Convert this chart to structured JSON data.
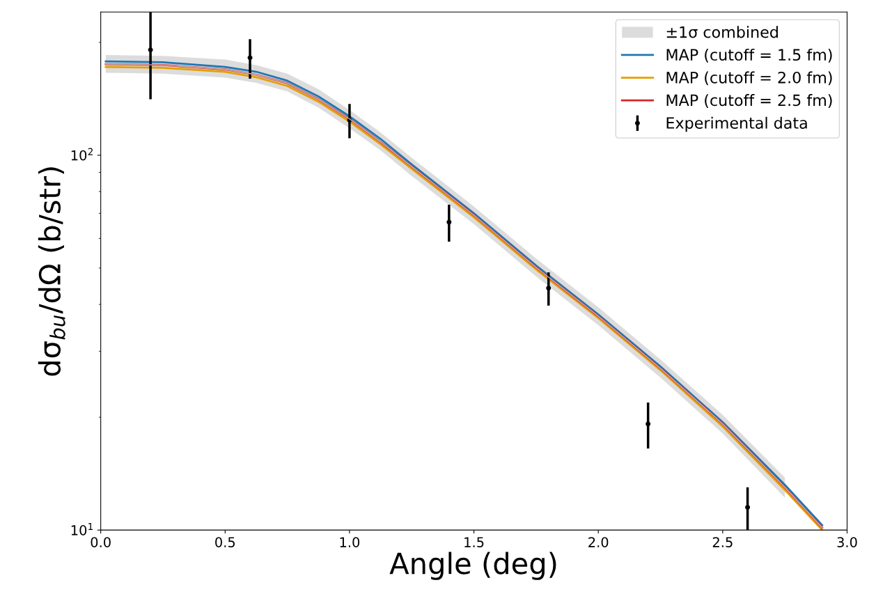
{
  "chart_data": {
    "type": "line",
    "xlabel": "Angle (deg)",
    "ylabel": "dσ$_{bu}$/dΩ (b/str)",
    "log": "y",
    "xlim": [
      0,
      3
    ],
    "ylim": [
      10,
      241
    ],
    "xticks": [
      {
        "value": 0,
        "label": "0.0"
      },
      {
        "value": 0.5,
        "label": "0.5"
      },
      {
        "value": 1,
        "label": "1.0"
      },
      {
        "value": 1.5,
        "label": "1.5"
      },
      {
        "value": 2,
        "label": "2.0"
      },
      {
        "value": 2.5,
        "label": "2.5"
      },
      {
        "value": 3,
        "label": "3.0"
      }
    ],
    "yticks": [
      {
        "value": 10,
        "label": "10$^{1}$"
      },
      {
        "value": 100,
        "label": "10$^{2}$"
      }
    ],
    "grid": false,
    "legend": "top right",
    "line_style": "solid",
    "series": [
      {
        "name": "±1σ combined",
        "color": "#bfbfbf",
        "x": [
          0.02,
          0.25,
          0.5,
          0.625,
          0.75,
          0.875,
          1.0,
          1.125,
          1.25,
          1.5,
          1.75,
          2.0,
          2.25,
          2.5,
          2.75,
          2.9
        ],
        "values": [
          175,
          174,
          169.5,
          164,
          155.5,
          141,
          125,
          108.5,
          93.3,
          69.2,
          50.2,
          37.2,
          27.0,
          19.2,
          13.0,
          10.15
        ],
        "lower": [
          166,
          165,
          161,
          156,
          148,
          134,
          118,
          103,
          88,
          65.5,
          47.5,
          35.2,
          25.5,
          18.1,
          12.2,
          null
        ],
        "upper": [
          185,
          184,
          180,
          174,
          165,
          150,
          132,
          115,
          98.5,
          73,
          53,
          39.3,
          28.5,
          20.3,
          13.8,
          null
        ]
      },
      {
        "name": "MAP (cutoff = 1.5 fm)",
        "type": "line",
        "color": "#1f77b4",
        "x": [
          0.02,
          0.25,
          0.5,
          0.625,
          0.75,
          0.875,
          1.0,
          1.125,
          1.25,
          1.5,
          1.75,
          2.0,
          2.25,
          2.5,
          2.75,
          2.9
        ],
        "values": [
          178,
          177,
          172,
          167,
          158,
          143.5,
          127,
          110.5,
          94.5,
          70,
          50.8,
          37.6,
          27.3,
          19.4,
          13.2,
          10.3
        ]
      },
      {
        "name": "MAP (cutoff = 2.0 fm)",
        "type": "line",
        "color": "#e69f00",
        "x": [
          0.02,
          0.25,
          0.5,
          0.625,
          0.75,
          0.875,
          1.0,
          1.125,
          1.25,
          1.5,
          1.75,
          2.0,
          2.25,
          2.5,
          2.75,
          2.9
        ],
        "values": [
          172,
          171,
          167,
          161.5,
          153,
          139,
          123,
          107,
          92,
          68.3,
          49.6,
          36.8,
          26.7,
          18.9,
          12.8,
          10.0
        ]
      },
      {
        "name": "MAP (cutoff = 2.5 fm)",
        "type": "line",
        "color": "#d62728",
        "x": [
          0.02,
          0.25,
          0.5,
          0.625,
          0.75,
          0.875,
          1.0,
          1.125,
          1.25,
          1.5,
          1.75,
          2.0,
          2.25,
          2.5,
          2.75,
          2.9
        ],
        "values": [
          175,
          174,
          169.5,
          164,
          155.5,
          141,
          125,
          108.5,
          93.3,
          69.2,
          50.2,
          37.2,
          27.0,
          19.2,
          13.0,
          10.15
        ]
      },
      {
        "name": "Experimental data",
        "type": "scatter",
        "color": "#000000",
        "marker": "circle",
        "x": [
          0.2,
          0.6,
          1.0,
          1.4,
          1.8,
          2.2,
          2.6
        ],
        "values": [
          191,
          182,
          124,
          66.3,
          44.2,
          19.2,
          11.5
        ],
        "errors": [
          50,
          22,
          13,
          7.5,
          4.5,
          2.7,
          1.5
        ]
      }
    ]
  }
}
